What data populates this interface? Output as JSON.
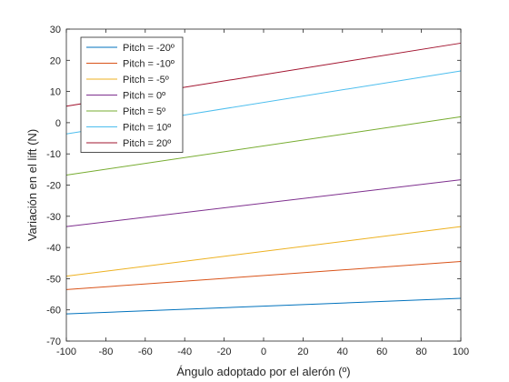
{
  "chart_data": {
    "type": "line",
    "title": "",
    "xlabel": "Ángulo adoptado por el alerón (º)",
    "ylabel": "Variación en el lift (N)",
    "xlim": [
      -100,
      100
    ],
    "ylim": [
      -70,
      30
    ],
    "xticks": [
      -100,
      -80,
      -60,
      -40,
      -20,
      0,
      20,
      40,
      60,
      80,
      100
    ],
    "yticks": [
      -70,
      -60,
      -50,
      -40,
      -30,
      -20,
      -10,
      0,
      10,
      20,
      30
    ],
    "grid": false,
    "legend_position": "top-left",
    "x": [
      -100,
      100
    ],
    "series": [
      {
        "name": "Pitch = -20º",
        "color": "#0072BD",
        "values": [
          -61.3,
          -56.3
        ]
      },
      {
        "name": "Pitch = -10º",
        "color": "#D95319",
        "values": [
          -53.5,
          -44.5
        ]
      },
      {
        "name": "Pitch = -5º",
        "color": "#EDB120",
        "values": [
          -49.2,
          -33.3
        ]
      },
      {
        "name": "Pitch = 0º",
        "color": "#7E2F8E",
        "values": [
          -33.3,
          -18.3
        ]
      },
      {
        "name": "Pitch = 5º",
        "color": "#77AC30",
        "values": [
          -16.8,
          1.9
        ]
      },
      {
        "name": "Pitch = 10º",
        "color": "#4DBEEE",
        "values": [
          -3.6,
          16.6
        ]
      },
      {
        "name": "Pitch = 20º",
        "color": "#A2142F",
        "values": [
          5.3,
          25.5
        ]
      }
    ]
  }
}
